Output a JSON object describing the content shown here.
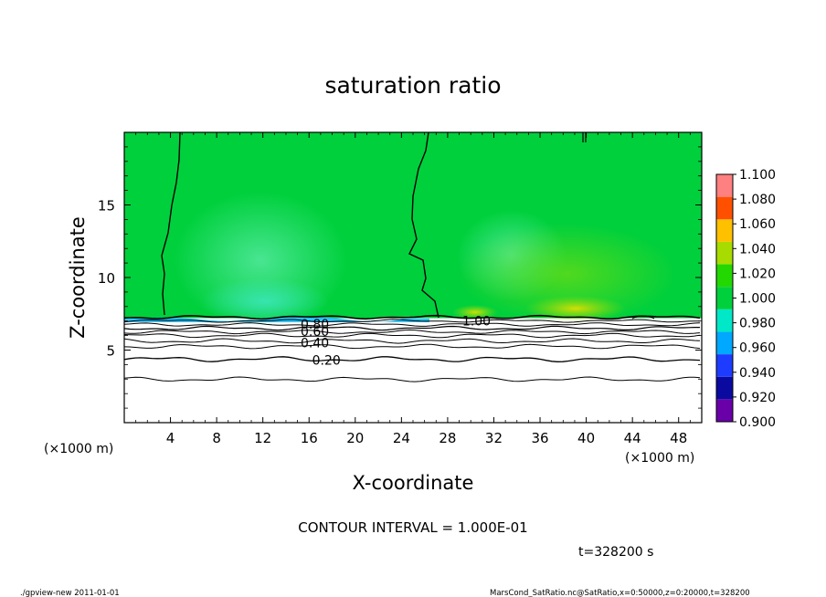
{
  "chart_data": {
    "type": "heatmap",
    "title": "saturation ratio",
    "xlabel": "X-coordinate",
    "ylabel": "Z-coordinate",
    "x_unit_left": "(×1000 m)",
    "x_unit_right": "(×1000 m)",
    "xlim": [
      0,
      50
    ],
    "ylim": [
      0,
      20
    ],
    "x_ticks": [
      4,
      8,
      12,
      16,
      20,
      24,
      28,
      32,
      36,
      40,
      44,
      48
    ],
    "y_ticks": [
      5,
      10,
      15
    ],
    "colorbar": {
      "levels": [
        0.9,
        0.92,
        0.94,
        0.96,
        0.98,
        1.0,
        1.02,
        1.04,
        1.06,
        1.08,
        1.1
      ],
      "labels": [
        "0.900",
        "0.920",
        "0.940",
        "0.960",
        "0.980",
        "1.000",
        "1.020",
        "1.040",
        "1.060",
        "1.080",
        "1.100"
      ],
      "colors": [
        "#6a00a8",
        "#0a0aa0",
        "#1e3cff",
        "#00a8ff",
        "#00e8c8",
        "#00d03c",
        "#22d800",
        "#a8dc00",
        "#ffc000",
        "#ff5000",
        "#ff8080"
      ]
    },
    "cloud_base_z": 7.2,
    "background_value_above": 1.0,
    "contour_labels": [
      {
        "text": "1.00",
        "x": 30.5,
        "z": 7.0
      },
      {
        "text": "0.80",
        "x": 16.5,
        "z": 6.8
      },
      {
        "text": "0.60",
        "x": 16.5,
        "z": 6.3
      },
      {
        "text": "0.40",
        "x": 16.5,
        "z": 5.5
      },
      {
        "text": "0.20",
        "x": 17.5,
        "z": 4.3
      }
    ],
    "contour_interval_text": "CONTOUR INTERVAL = 1.000E-01",
    "time_text": "t=328200 s"
  },
  "footer": {
    "left": "./gpview-new 2011-01-01",
    "right": "MarsCond_SatRatio.nc@SatRatio,x=0:50000,z=0:20000,t=328200"
  }
}
